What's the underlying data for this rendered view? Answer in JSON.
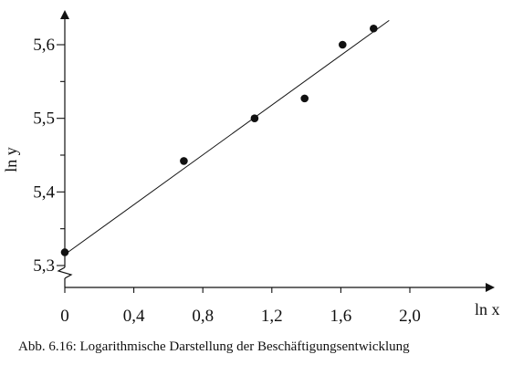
{
  "chart_data": {
    "type": "scatter",
    "xlabel": "ln x",
    "ylabel": "ln y",
    "xlim": [
      0,
      2.0
    ],
    "ylim": [
      5.3,
      5.6
    ],
    "x_ticks": [
      0,
      0.4,
      0.8,
      1.2,
      1.6,
      2.0
    ],
    "x_tick_labels": [
      "0",
      "0,4",
      "0,8",
      "1,2",
      "1,6",
      "2,0"
    ],
    "y_ticks": [
      5.3,
      5.4,
      5.5,
      5.6
    ],
    "y_tick_labels": [
      "5,3",
      "5,4",
      "5,5",
      "5,6"
    ],
    "y_axis_break": true,
    "grid": false,
    "points": [
      {
        "x": 0.0,
        "y": 5.318
      },
      {
        "x": 0.69,
        "y": 5.442
      },
      {
        "x": 1.1,
        "y": 5.5
      },
      {
        "x": 1.39,
        "y": 5.527
      },
      {
        "x": 1.61,
        "y": 5.6
      },
      {
        "x": 1.79,
        "y": 5.622
      }
    ],
    "regression_line": {
      "x": [
        0,
        1.88
      ],
      "y": [
        5.315,
        5.633
      ]
    }
  },
  "caption": "Abb. 6.16: Logarithmische Darstellung der Beschäftigungsentwicklung"
}
